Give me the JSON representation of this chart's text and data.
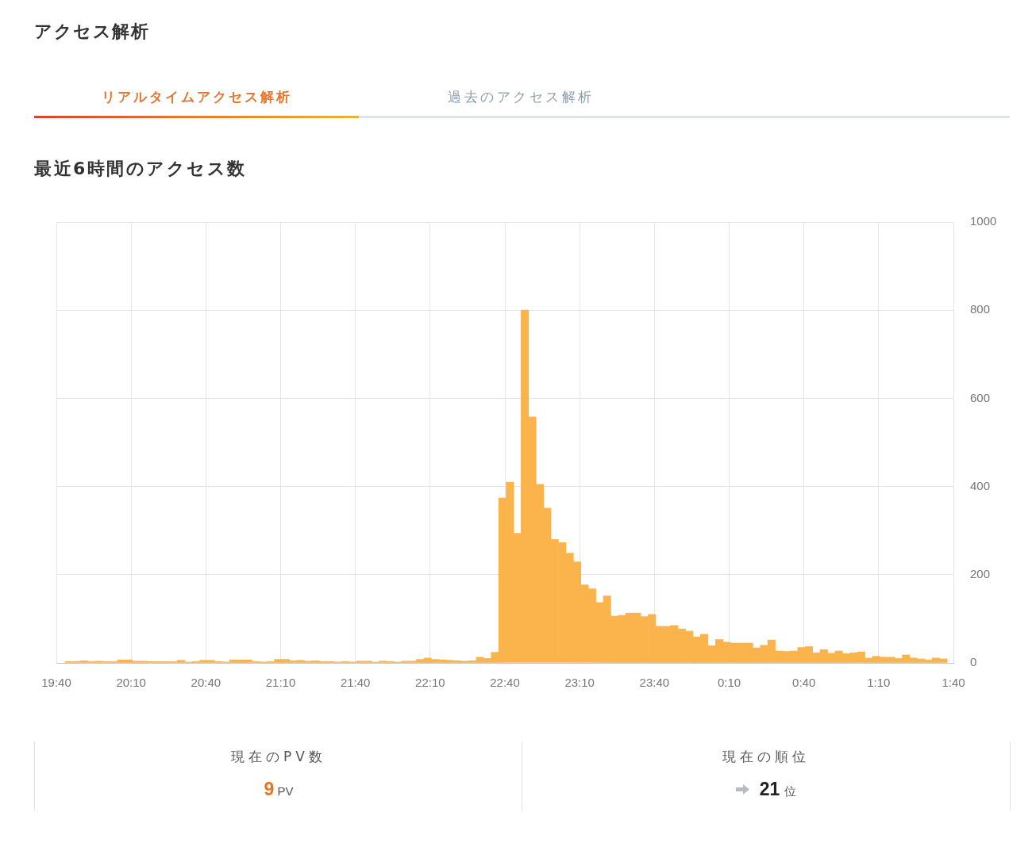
{
  "chart_data": {
    "type": "bar",
    "title": "アクセス解析",
    "subtitle": "最近6時間のアクセス数",
    "annotations": [
      "リアルタイムアクセス解析",
      "過去のアクセス解析",
      "現在のPV数",
      "9",
      "PV",
      "現在の順位",
      "21",
      "位"
    ],
    "x": [
      "--01-01T19:45",
      "--01-01T19:48",
      "--01-01T19:51",
      "--01-01T19:54",
      "--01-01T19:57",
      "--01-01T20:00",
      "--01-01T20:03",
      "--01-01T20:06",
      "--01-01T20:09",
      "--01-01T20:12",
      "--01-01T20:15",
      "--01-01T20:18",
      "--01-01T20:21",
      "--01-01T20:24",
      "--01-01T20:27",
      "--01-01T20:30",
      "--01-01T20:33",
      "--01-01T20:36",
      "--01-01T20:39",
      "--01-01T20:42",
      "--01-01T20:45",
      "--01-01T20:48",
      "--01-01T20:51",
      "--01-01T20:54",
      "--01-01T20:57",
      "--01-01T21:00",
      "--01-01T21:03",
      "--01-01T21:06",
      "--01-01T21:09",
      "--01-01T21:12",
      "--01-01T21:15",
      "--01-01T21:18",
      "--01-01T21:21",
      "--01-01T21:24",
      "--01-01T21:27",
      "--01-01T21:30",
      "--01-01T21:33",
      "--01-01T21:36",
      "--01-01T21:39",
      "--01-01T21:42",
      "--01-01T21:45",
      "--01-01T21:48",
      "--01-01T21:51",
      "--01-01T21:54",
      "--01-01T21:57",
      "--01-01T22:00",
      "--01-01T22:03",
      "--01-01T22:06",
      "--01-01T22:09",
      "--01-01T22:12",
      "--01-01T22:15",
      "--01-01T22:18",
      "--01-01T22:21",
      "--01-01T22:24",
      "--01-01T22:27",
      "--01-01T22:30",
      "--01-01T22:33",
      "--01-01T22:36",
      "--01-01T22:39",
      "--01-01T22:42",
      "--01-01T22:45",
      "--01-01T22:48",
      "--01-01T22:51",
      "--01-01T22:54",
      "--01-01T22:57",
      "--01-01T23:00",
      "--01-01T23:03",
      "--01-01T23:06",
      "--01-01T23:09",
      "--01-01T23:12",
      "--01-01T23:15",
      "--01-01T23:18",
      "--01-01T23:21",
      "--01-01T23:24",
      "--01-01T23:27",
      "--01-01T23:30",
      "--01-01T23:33",
      "--01-01T23:36",
      "--01-01T23:39",
      "--01-01T23:42",
      "--01-01T23:45",
      "--01-01T23:48",
      "--01-01T23:51",
      "--01-01T23:54",
      "--01-01T23:57",
      "--01-02T00:00",
      "--01-02T00:03",
      "--01-02T00:06",
      "--01-02T00:09",
      "--01-02T00:12",
      "--01-02T00:15",
      "--01-02T00:18",
      "--01-02T00:21",
      "--01-02T00:24",
      "--01-02T00:27",
      "--01-02T00:30",
      "--01-02T00:33",
      "--01-02T00:36",
      "--01-02T00:39",
      "--01-02T00:42",
      "--01-02T00:45",
      "--01-02T00:48",
      "--01-02T00:51",
      "--01-02T00:54",
      "--01-02T00:57",
      "--01-02T01:00",
      "--01-02T01:03",
      "--01-02T01:06",
      "--01-02T01:09",
      "--01-02T01:12",
      "--01-02T01:15",
      "--01-02T01:18",
      "--01-02T01:21",
      "--01-02T01:24",
      "--01-02T01:27",
      "--01-02T01:30",
      "--01-02T01:33",
      "--01-02T01:36"
    ],
    "values": [
      3,
      3,
      5,
      3,
      4,
      3,
      3,
      7,
      7,
      4,
      4,
      3,
      3,
      3,
      3,
      6,
      2,
      3,
      6,
      6,
      3,
      2,
      7,
      7,
      7,
      3,
      2,
      3,
      8,
      8,
      5,
      6,
      4,
      5,
      3,
      3,
      2,
      3,
      2,
      4,
      4,
      2,
      4,
      3,
      2,
      4,
      4,
      8,
      11,
      8,
      7,
      6,
      5,
      4,
      5,
      13,
      10,
      24,
      374,
      410,
      294,
      800,
      558,
      405,
      351,
      280,
      273,
      249,
      229,
      177,
      168,
      137,
      152,
      106,
      108,
      113,
      113,
      105,
      110,
      83,
      83,
      85,
      77,
      72,
      59,
      65,
      39,
      53,
      47,
      45,
      45,
      45,
      34,
      40,
      52,
      27,
      26,
      27,
      35,
      37,
      23,
      30,
      22,
      27,
      21,
      23,
      25,
      11,
      15,
      13,
      13,
      10,
      18,
      11,
      9,
      7,
      11,
      9
    ],
    "color": "#fbb34c",
    "xlim": [
      "--01-01T19:40",
      "--01-02T01:40"
    ],
    "xticks": [
      {
        "value": "--01-01T19:40",
        "label": "19:40"
      },
      {
        "value": "--01-01T20:10",
        "label": "20:10"
      },
      {
        "value": "--01-01T20:40",
        "label": "20:40"
      },
      {
        "value": "--01-01T21:10",
        "label": "21:10"
      },
      {
        "value": "--01-01T21:40",
        "label": "21:40"
      },
      {
        "value": "--01-01T22:10",
        "label": "22:10"
      },
      {
        "value": "--01-01T22:40",
        "label": "22:40"
      },
      {
        "value": "--01-01T23:10",
        "label": "23:10"
      },
      {
        "value": "--01-01T23:40",
        "label": "23:40"
      },
      {
        "value": "--01-02T00:10",
        "label": "0:10"
      },
      {
        "value": "--01-02T00:40",
        "label": "0:40"
      },
      {
        "value": "--01-02T01:10",
        "label": "1:10"
      },
      {
        "value": "--01-02T01:40",
        "label": "1:40"
      }
    ],
    "ylim": [
      0,
      1000
    ],
    "yticks": [
      0,
      200,
      400,
      600,
      800,
      1000
    ],
    "grid": true
  }
}
